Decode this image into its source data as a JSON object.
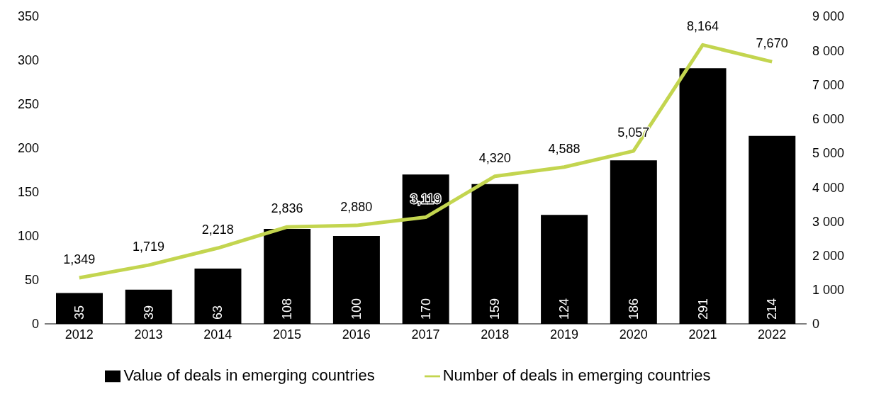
{
  "chart_data": {
    "type": "bar",
    "categories": [
      "2012",
      "2013",
      "2014",
      "2015",
      "2016",
      "2017",
      "2018",
      "2019",
      "2020",
      "2021",
      "2022"
    ],
    "series": [
      {
        "name": "Value of deals in emerging countries",
        "color": "#000000",
        "values": [
          35,
          39,
          63,
          108,
          100,
          170,
          159,
          124,
          186,
          291,
          214
        ],
        "value_labels": [
          "35",
          "39",
          "63",
          "108",
          "100",
          "170",
          "159",
          "124",
          "186",
          "291",
          "214"
        ]
      },
      {
        "name": "Number of deals in emerging countries",
        "type": "line",
        "axis": "y2",
        "color": "#c3d54f",
        "values": [
          1349,
          1719,
          2218,
          2836,
          2880,
          3119,
          4320,
          4588,
          5057,
          8164,
          7670
        ],
        "value_labels": [
          "1,349",
          "1,719",
          "2,218",
          "2,836",
          "2,880",
          "3,119",
          "4,320",
          "4,588",
          "5,057",
          "8,164",
          "7,670"
        ]
      }
    ],
    "ylim": [
      0,
      350
    ],
    "yticks": [
      0,
      50,
      100,
      150,
      200,
      250,
      300,
      350
    ],
    "y2lim": [
      0,
      9000
    ],
    "y2ticks": [
      0,
      {
        "value": 1000,
        "label": "1 000"
      },
      {
        "value": 2000,
        "label": "2 000"
      },
      {
        "value": 3000,
        "label": "3 000"
      },
      {
        "value": 4000,
        "label": "4 000"
      },
      {
        "value": 5000,
        "label": "5 000"
      },
      {
        "value": 6000,
        "label": "6 000"
      },
      {
        "value": 7000,
        "label": "7 000"
      },
      {
        "value": 8000,
        "label": "8 000"
      },
      {
        "value": 9000,
        "label": "9 000"
      }
    ],
    "grid": false,
    "legend": "bottom",
    "marker": "none",
    "line_style": "solid"
  }
}
